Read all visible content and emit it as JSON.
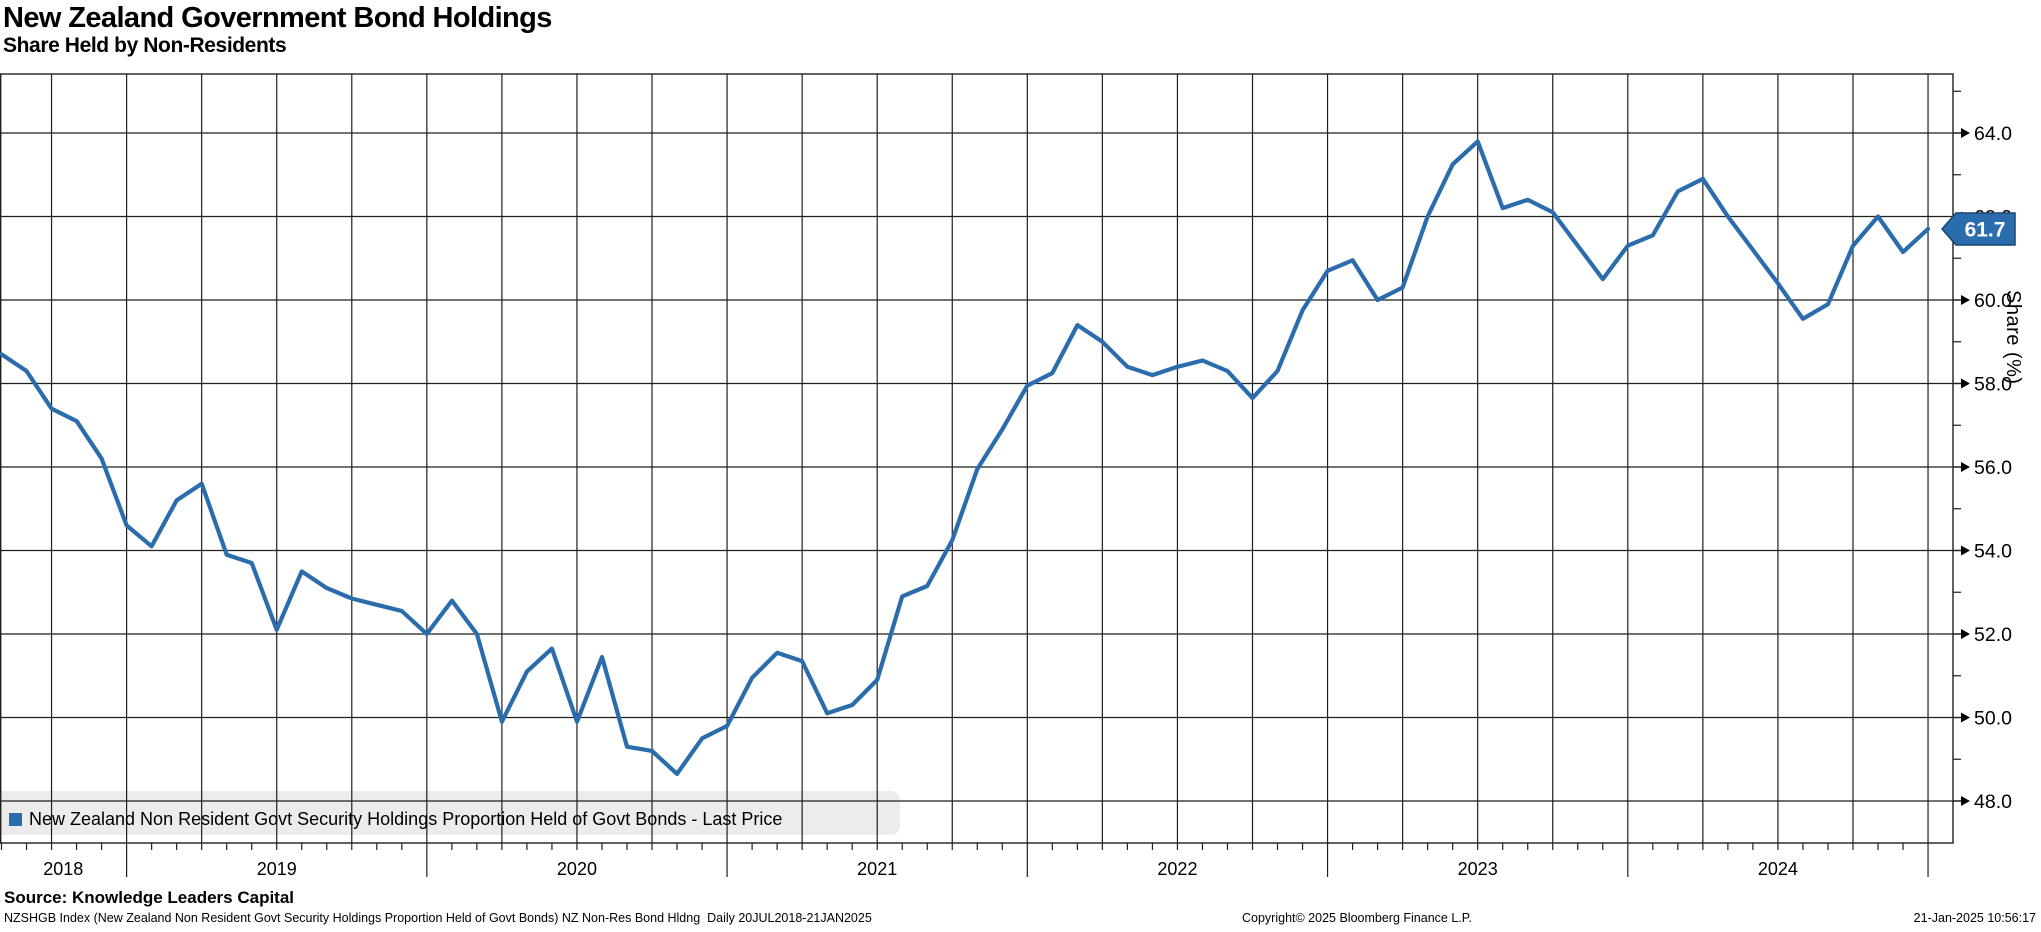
{
  "chart_data": {
    "type": "line",
    "title": "New Zealand Government Bond Holdings",
    "subtitle": "Share Held by Non-Residents",
    "ylabel": "Share (%)",
    "ylim": [
      47.0,
      65.4
    ],
    "y_ticks": [
      48.0,
      50.0,
      52.0,
      54.0,
      56.0,
      58.0,
      60.0,
      62.0,
      64.0
    ],
    "y_minor_tick_step": 1.0,
    "grid": true,
    "x_gridline_interval": "quarterly",
    "x_year_labels": [
      "2018",
      "2019",
      "2020",
      "2021",
      "2022",
      "2023",
      "2024"
    ],
    "x_range_note": "Daily 20JUL2018-21JAN2025, monthly observations plotted",
    "legend_position": "bottom-left",
    "last_price": "61.7",
    "categories": [
      "Aug 2018",
      "Sep 2018",
      "Oct 2018",
      "Nov 2018",
      "Dec 2018",
      "Jan 2019",
      "Feb 2019",
      "Mar 2019",
      "Apr 2019",
      "May 2019",
      "Jun 2019",
      "Jul 2019",
      "Aug 2019",
      "Sep 2019",
      "Oct 2019",
      "Nov 2019",
      "Dec 2019",
      "Jan 2020",
      "Feb 2020",
      "Mar 2020",
      "Apr 2020",
      "May 2020",
      "Jun 2020",
      "Jul 2020",
      "Aug 2020",
      "Sep 2020",
      "Oct 2020",
      "Nov 2020",
      "Dec 2020",
      "Jan 2021",
      "Feb 2021",
      "Mar 2021",
      "Apr 2021",
      "May 2021",
      "Jun 2021",
      "Jul 2021",
      "Aug 2021",
      "Sep 2021",
      "Oct 2021",
      "Nov 2021",
      "Dec 2021",
      "Jan 2022",
      "Feb 2022",
      "Mar 2022",
      "Apr 2022",
      "May 2022",
      "Jun 2022",
      "Jul 2022",
      "Aug 2022",
      "Sep 2022",
      "Oct 2022",
      "Nov 2022",
      "Dec 2022",
      "Jan 2023",
      "Feb 2023",
      "Mar 2023",
      "Apr 2023",
      "May 2023",
      "Jun 2023",
      "Jul 2023",
      "Aug 2023",
      "Sep 2023",
      "Oct 2023",
      "Nov 2023",
      "Dec 2023",
      "Jan 2024",
      "Feb 2024",
      "Mar 2024",
      "Apr 2024",
      "May 2024",
      "Jun 2024",
      "Jul 2024",
      "Aug 2024",
      "Sep 2024",
      "Oct 2024",
      "Nov 2024",
      "Dec 2024",
      "Jan 2025"
    ],
    "series": [
      {
        "name": "New Zealand Non Resident Govt Security Holdings Proportion Held of Govt Bonds - Last Price",
        "color": "#2a6cac",
        "values": [
          58.7,
          58.3,
          57.4,
          57.1,
          56.2,
          54.6,
          54.1,
          55.2,
          55.6,
          53.9,
          53.7,
          52.1,
          53.5,
          53.1,
          52.85,
          52.7,
          52.55,
          52.0,
          52.8,
          52.0,
          49.9,
          51.1,
          51.65,
          49.9,
          51.45,
          49.3,
          49.2,
          48.65,
          49.5,
          49.8,
          50.95,
          51.55,
          51.35,
          50.1,
          50.3,
          50.9,
          52.9,
          53.15,
          54.25,
          55.95,
          56.9,
          57.95,
          58.25,
          59.4,
          59.0,
          58.4,
          58.2,
          58.4,
          58.55,
          58.3,
          57.65,
          58.3,
          59.75,
          60.7,
          60.95,
          60.0,
          60.3,
          62.0,
          63.25,
          63.8,
          62.2,
          62.4,
          62.1,
          61.3,
          60.5,
          61.3,
          61.55,
          62.6,
          62.9,
          62.0,
          61.2,
          60.4,
          59.55,
          59.9,
          61.3,
          62.0,
          61.15,
          61.7
        ]
      }
    ]
  },
  "footer": {
    "source": "Source: Knowledge Leaders Capital",
    "description": "NZSHGB Index (New Zealand Non Resident Govt Security Holdings Proportion Held of Govt Bonds) NZ Non-Res Bond Hldng  Daily 20JUL2018-21JAN2025",
    "copyright": "Copyright© 2025 Bloomberg Finance L.P.",
    "datetime": "21-Jan-2025 10:56:17"
  }
}
